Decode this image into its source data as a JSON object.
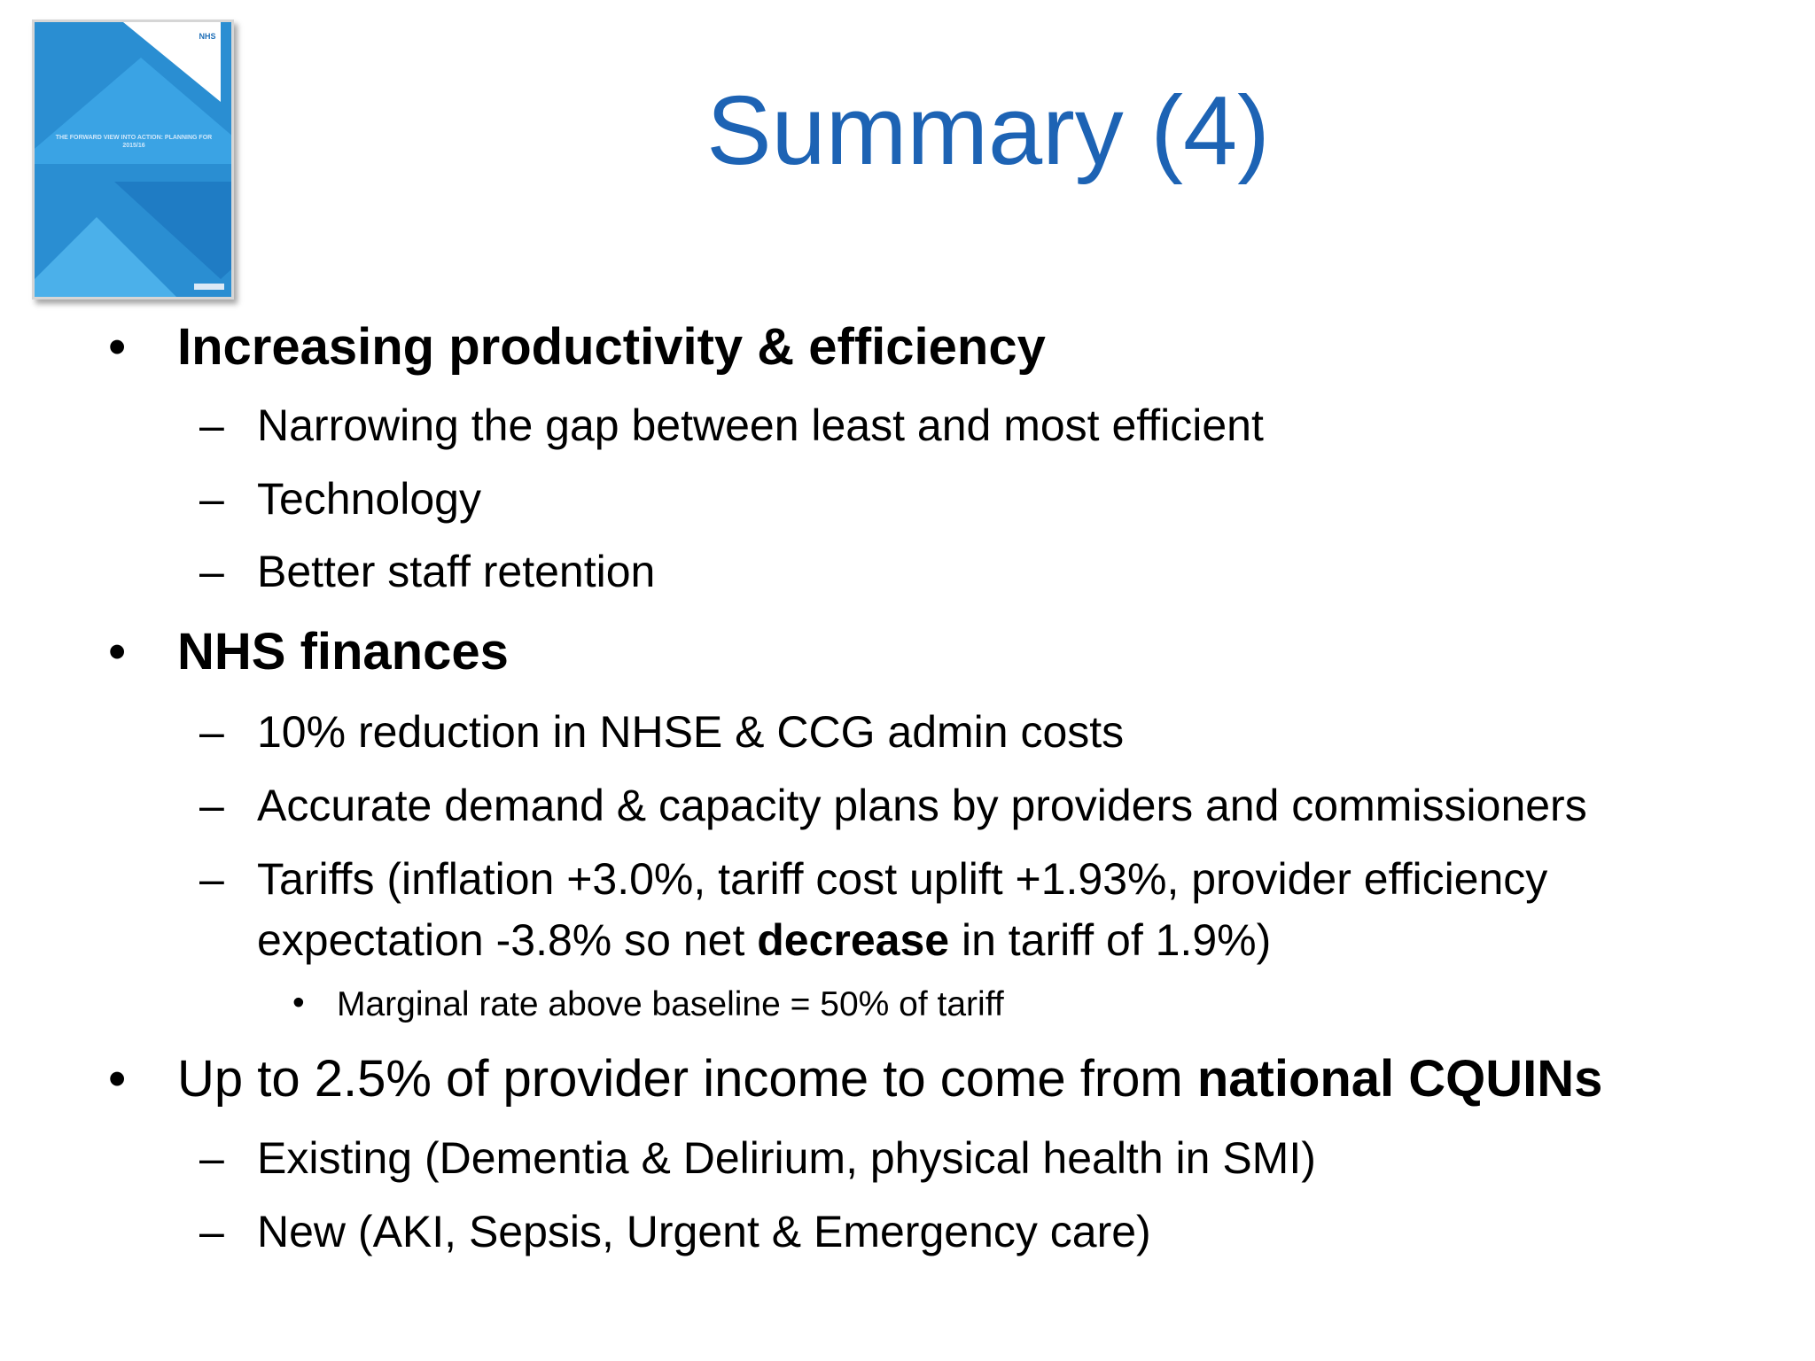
{
  "slide": {
    "title": "Summary (4)",
    "thumbnail": {
      "logo": "NHS",
      "cover_text": "THE FORWARD VIEW INTO ACTION: PLANNING FOR 2015/16"
    },
    "sections": [
      {
        "heading": "Increasing productivity & efficiency",
        "items": [
          "Narrowing the gap between least and most efficient",
          "Technology",
          "Better staff retention"
        ]
      },
      {
        "heading": "NHS finances",
        "items": [
          "10% reduction in NHSE & CCG admin costs",
          "Accurate demand & capacity plans by providers and commissioners",
          {
            "line1": "Tariffs (inflation +3.0%, tariff cost uplift +1.93%, provider efficiency",
            "line2_pre": "expectation -3.8% so net ",
            "line2_bold": "decrease",
            "line2_post": " in tariff of 1.9%)",
            "sub": "Marginal rate above baseline = 50% of tariff"
          }
        ]
      },
      {
        "heading_pre": "Up to 2.5% of provider income to come from ",
        "heading_bold": "national CQUINs",
        "items": [
          "Existing (Dementia & Delirium, physical health in SMI)",
          "New (AKI, Sepsis, Urgent & Emergency care)"
        ]
      }
    ],
    "bullets": {
      "level1": "•",
      "level2": "–",
      "level3": "•"
    },
    "colors": {
      "title": "#1d63b4",
      "thumbnail": "#2a8ed2",
      "text": "#000000"
    }
  }
}
